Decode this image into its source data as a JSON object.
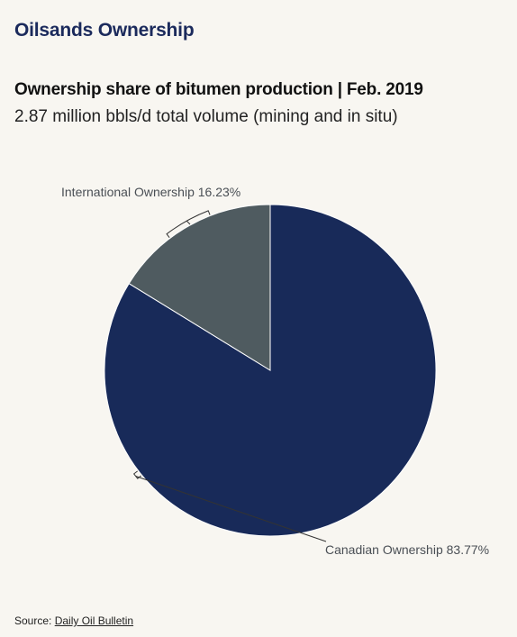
{
  "header": {
    "title": "Oilsands Ownership"
  },
  "chart_data": {
    "type": "pie",
    "title": "Ownership share of bitumen production | Feb. 2019",
    "subtitle": "2.87 million bbls/d total volume (mining and in situ)",
    "slices": [
      {
        "label": "Canadian Ownership",
        "value": 83.77,
        "display": "Canadian Ownership 83.77%",
        "color": "#182a59"
      },
      {
        "label": "International Ownership",
        "value": 16.23,
        "display": "International Ownership 16.23%",
        "color": "#4f5b60"
      }
    ],
    "start": "top",
    "direction": "clockwise"
  },
  "source": {
    "prefix": "Source:",
    "link_text": "Daily Oil Bulletin"
  }
}
